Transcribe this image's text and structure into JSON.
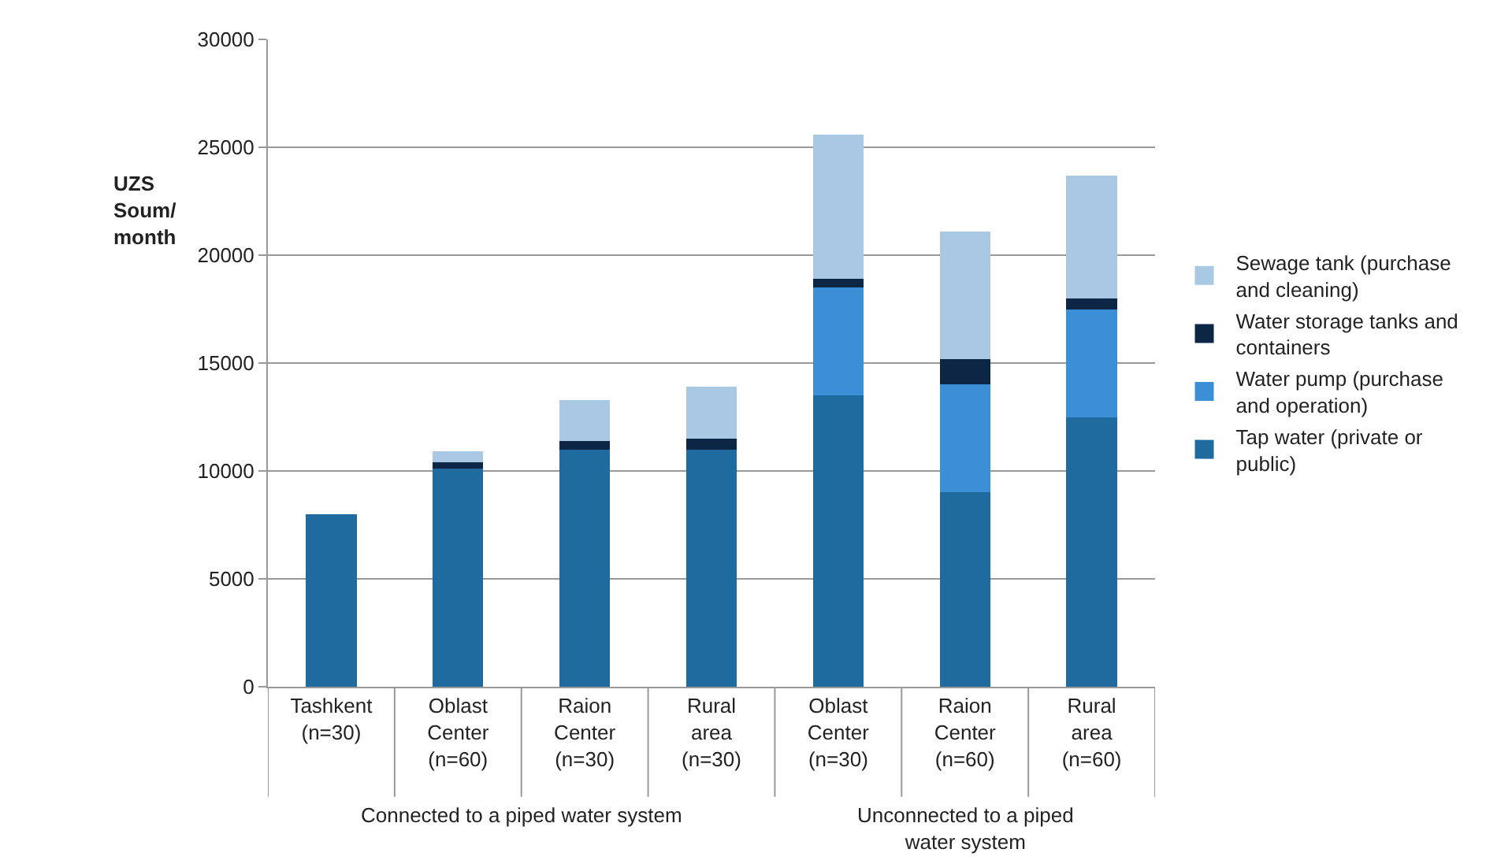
{
  "chart_data": {
    "type": "bar",
    "stacked": true,
    "ylabel": "UZS\nSoum/\nmonth",
    "categories": [
      "Tashkent\n(n=30)",
      "Oblast\nCenter\n(n=60)",
      "Raion\nCenter\n(n=30)",
      "Rural\narea\n(n=30)",
      "Oblast\nCenter\n(n=30)",
      "Raion\nCenter\n(n=60)",
      "Rural\narea\n(n=60)"
    ],
    "series": [
      {
        "name": "Tap water (private or\npublic)",
        "color": "#1f6a9e",
        "values": [
          8000,
          10100,
          11000,
          11000,
          13500,
          9000,
          12500
        ]
      },
      {
        "name": "Water pump (purchase\nand operation)",
        "color": "#3a8fd6",
        "values": [
          0,
          0,
          0,
          0,
          5000,
          5000,
          5000
        ]
      },
      {
        "name": "Water storage tanks and\ncontainers",
        "color": "#0d2645",
        "values": [
          0,
          300,
          400,
          500,
          400,
          1200,
          500
        ]
      },
      {
        "name": "Sewage tank (purchase\nand cleaning)",
        "color": "#a9c8e4",
        "values": [
          0,
          500,
          1900,
          2400,
          6700,
          5900,
          5700
        ]
      }
    ],
    "annotations": [
      "Connected to a piped water system",
      "Unconnected to a piped\nwater system"
    ],
    "ylim": [
      0,
      30000
    ],
    "yticks": [
      0,
      5000,
      10000,
      15000,
      20000,
      25000,
      30000
    ],
    "grid": "y",
    "legend": "right"
  }
}
